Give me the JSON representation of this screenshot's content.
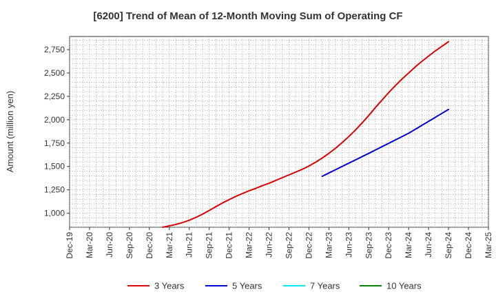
{
  "chart_data": {
    "type": "line",
    "title": "[6200]  Trend of Mean of 12-Month Moving Sum of Operating CF",
    "ylabel": "Amount (million yen)",
    "xlabel": "",
    "x_tick_labels": [
      "Dec-19",
      "Mar-20",
      "Jun-20",
      "Sep-20",
      "Dec-20",
      "Mar-21",
      "Jun-21",
      "Sep-21",
      "Dec-21",
      "Mar-22",
      "Jun-22",
      "Sep-22",
      "Dec-22",
      "Mar-23",
      "Jun-23",
      "Sep-23",
      "Dec-23",
      "Mar-24",
      "Jun-24",
      "Sep-24",
      "Dec-24",
      "Mar-25"
    ],
    "y_ticks": [
      1000,
      1250,
      1500,
      1750,
      2000,
      2250,
      2500,
      2750
    ],
    "y_tick_labels": [
      "1,000",
      "1,250",
      "1,500",
      "1,750",
      "2,000",
      "2,250",
      "2,500",
      "2,750"
    ],
    "ylim": [
      850,
      2890
    ],
    "grid": true,
    "legend_position": "bottom",
    "series": [
      {
        "name": "3 Years",
        "color": "#dd0000",
        "x": [
          "Feb-21",
          "Mar-21",
          "Apr-21",
          "May-21",
          "Jun-21",
          "Jul-21",
          "Aug-21",
          "Sep-21",
          "Oct-21",
          "Nov-21",
          "Dec-21",
          "Jan-22",
          "Feb-22",
          "Mar-22",
          "Apr-22",
          "May-22",
          "Jun-22",
          "Jul-22",
          "Aug-22",
          "Sep-22",
          "Oct-22",
          "Nov-22",
          "Dec-22",
          "Jan-23",
          "Feb-23",
          "Mar-23",
          "Apr-23",
          "May-23",
          "Jun-23",
          "Jul-23",
          "Aug-23",
          "Sep-23",
          "Oct-23",
          "Nov-23",
          "Dec-23",
          "Jan-24",
          "Feb-24",
          "Mar-24",
          "Apr-24",
          "May-24",
          "Jun-24",
          "Jul-24",
          "Aug-24",
          "Sep-24"
        ],
        "values": [
          850,
          865,
          880,
          900,
          925,
          955,
          990,
          1030,
          1070,
          1110,
          1145,
          1180,
          1210,
          1240,
          1265,
          1295,
          1320,
          1350,
          1380,
          1410,
          1440,
          1470,
          1505,
          1545,
          1590,
          1640,
          1695,
          1755,
          1820,
          1890,
          1965,
          2045,
          2130,
          2210,
          2290,
          2365,
          2435,
          2500,
          2565,
          2625,
          2680,
          2735,
          2785,
          2835
        ]
      },
      {
        "name": "5 Years",
        "color": "#0000cc",
        "x": [
          "Feb-23",
          "Sep-23",
          "Mar-24",
          "Sep-24"
        ],
        "values": [
          1395,
          1640,
          1855,
          2110
        ]
      },
      {
        "name": "7 Years",
        "color": "#00e5ee",
        "x": [],
        "values": []
      },
      {
        "name": "10 Years",
        "color": "#008000",
        "x": [],
        "values": []
      }
    ]
  }
}
